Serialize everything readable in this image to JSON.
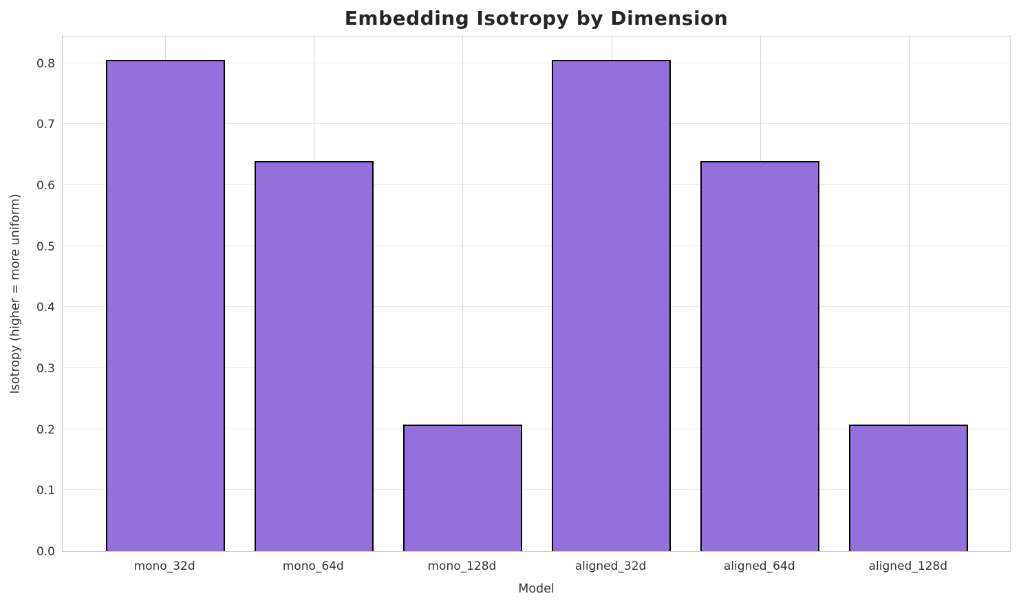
{
  "chart_data": {
    "type": "bar",
    "title": "Embedding Isotropy by Dimension",
    "xlabel": "Model",
    "ylabel": "Isotropy (higher = more uniform)",
    "categories": [
      "mono_32d",
      "mono_64d",
      "mono_128d",
      "aligned_32d",
      "aligned_64d",
      "aligned_128d"
    ],
    "values": [
      0.805,
      0.64,
      0.208,
      0.805,
      0.64,
      0.208
    ],
    "yticks": [
      "0.0",
      "0.1",
      "0.2",
      "0.3",
      "0.4",
      "0.5",
      "0.6",
      "0.7",
      "0.8"
    ],
    "ylim": [
      0,
      0.846
    ],
    "bar_width_fraction": 0.8,
    "x_margin_units": 0.69,
    "grid": true,
    "legend_position": "none",
    "colors": {
      "bar_fill": "#9370DB",
      "bar_edge": "#000000",
      "grid_horizontal": "#e8e8e8",
      "grid_vertical": "#d6d6d6",
      "spine": "#cccccc",
      "title_text": "#262626",
      "tick_text": "#333333",
      "background": "#ffffff"
    }
  }
}
